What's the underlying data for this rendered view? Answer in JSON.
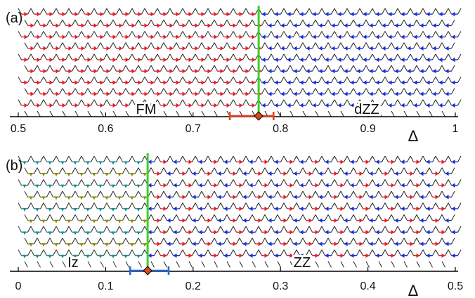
{
  "panels": [
    {
      "label": "(a)",
      "axis_symbol": "Δ",
      "ticks": [
        "0.5",
        "0.6",
        "0.7",
        "0.8",
        "0.9",
        "1"
      ],
      "axis_range": [
        0.5,
        1.0
      ],
      "phase_left": "FM",
      "phase_right": "dZZ",
      "transition": 0.775,
      "error_bar": [
        0.742,
        0.792
      ],
      "error_color": "#e8401c",
      "left_arrow_color": "#e0202a",
      "right_arrow_color": "#1a2fd0",
      "left_style": "ferromagnetic-arrows",
      "right_style": "double-zigzag-arrows",
      "boundary_color": "#3ecf2e"
    },
    {
      "label": "(b)",
      "axis_symbol": "Δ",
      "ticks": [
        "0",
        "0.1",
        "0.2",
        "0.3",
        "0.4",
        "0.5"
      ],
      "axis_range": [
        0.0,
        0.5
      ],
      "phase_left": "Iz",
      "phase_right": "ZZ",
      "transition": 0.148,
      "error_bar": [
        0.128,
        0.172
      ],
      "error_color": "#2b68d8",
      "left_arrow_color": "#8a8a10",
      "left_arrow_color_2": "#1a8c8c",
      "right_arrow_color": "#1a2fd0",
      "right_arrow_color_2": "#e0202a",
      "left_style": "ising-z-hexagons",
      "right_style": "zigzag-arrows",
      "boundary_color": "#3ecf2e"
    }
  ]
}
